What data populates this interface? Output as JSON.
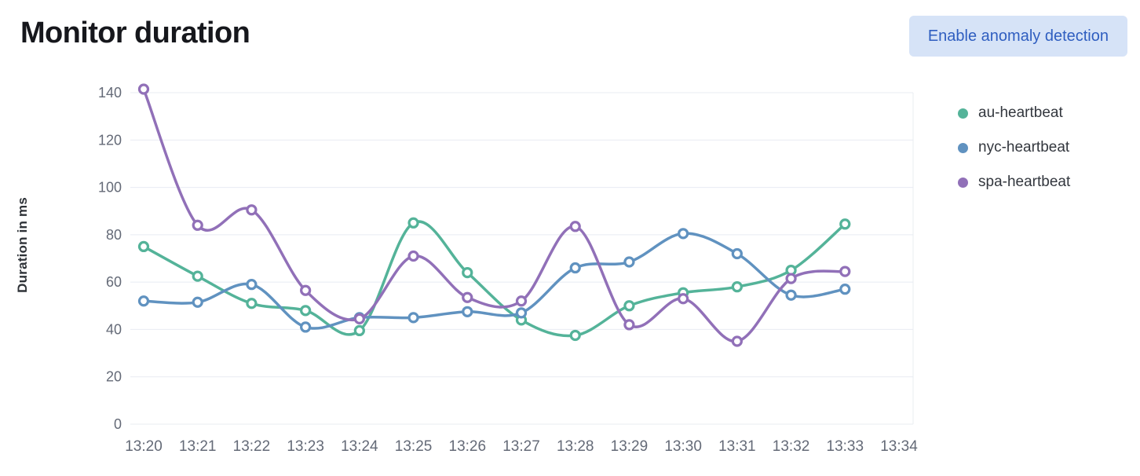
{
  "page": {
    "title": "Monitor duration"
  },
  "header": {
    "anomaly_button_label": "Enable anomaly detection"
  },
  "colors": {
    "button_bg": "#d6e3f7",
    "button_text": "#2f5ec0",
    "gridline": "#e8ecf2",
    "tick_text": "#646a77",
    "legend_text": "#33373e"
  },
  "chart_data": {
    "type": "line",
    "title": "",
    "xlabel": "",
    "ylabel": "Duration in ms",
    "grid": "horizontal",
    "legend_position": "right",
    "ylim": [
      0,
      145
    ],
    "y_ticks": [
      0,
      20,
      40,
      60,
      80,
      100,
      120,
      140
    ],
    "x_ticks": [
      "13:20",
      "13:21",
      "13:22",
      "13:23",
      "13:24",
      "13:25",
      "13:26",
      "13:27",
      "13:28",
      "13:29",
      "13:30",
      "13:31",
      "13:32",
      "13:33",
      "13:34"
    ],
    "series": [
      {
        "name": "au-heartbeat",
        "color": "#54B399",
        "values": [
          75,
          62.5,
          51,
          48,
          39.5,
          85,
          64,
          44,
          37.5,
          50,
          55.5,
          58,
          65,
          84.5
        ]
      },
      {
        "name": "nyc-heartbeat",
        "color": "#6092C0",
        "values": [
          52,
          51.5,
          59,
          41,
          45,
          45,
          47.5,
          47,
          66,
          68.5,
          80.5,
          72,
          54.5,
          57
        ]
      },
      {
        "name": "spa-heartbeat",
        "color": "#9170B8",
        "values": [
          141.5,
          84,
          90.5,
          56.5,
          44.5,
          71,
          53.5,
          52,
          83.5,
          42,
          53,
          35,
          61.5,
          64.5
        ]
      }
    ]
  }
}
